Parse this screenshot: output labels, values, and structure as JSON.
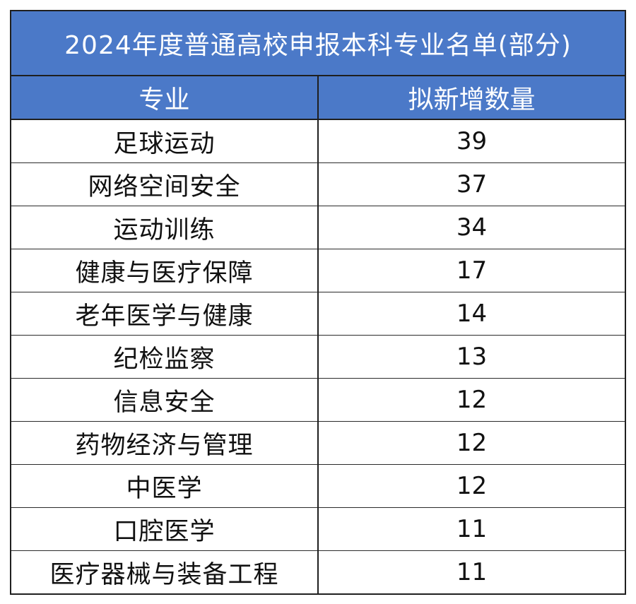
{
  "title": "2024年度普通高校申报本科专业名单(部分)",
  "headers": {
    "major": "专业",
    "count": "拟新增数量"
  },
  "rows": [
    {
      "major": "足球运动",
      "count": "39"
    },
    {
      "major": "网络空间安全",
      "count": "37"
    },
    {
      "major": "运动训练",
      "count": "34"
    },
    {
      "major": "健康与医疗保障",
      "count": "17"
    },
    {
      "major": "老年医学与健康",
      "count": "14"
    },
    {
      "major": "纪检监察",
      "count": "13"
    },
    {
      "major": "信息安全",
      "count": "12"
    },
    {
      "major": "药物经济与管理",
      "count": "12"
    },
    {
      "major": "中医学",
      "count": "12"
    },
    {
      "major": "口腔医学",
      "count": "11"
    },
    {
      "major": "医疗器械与装备工程",
      "count": "11"
    }
  ],
  "colors": {
    "header_bg": "#4b79c8",
    "header_text": "#ffffff",
    "border": "#1f1f1f"
  }
}
